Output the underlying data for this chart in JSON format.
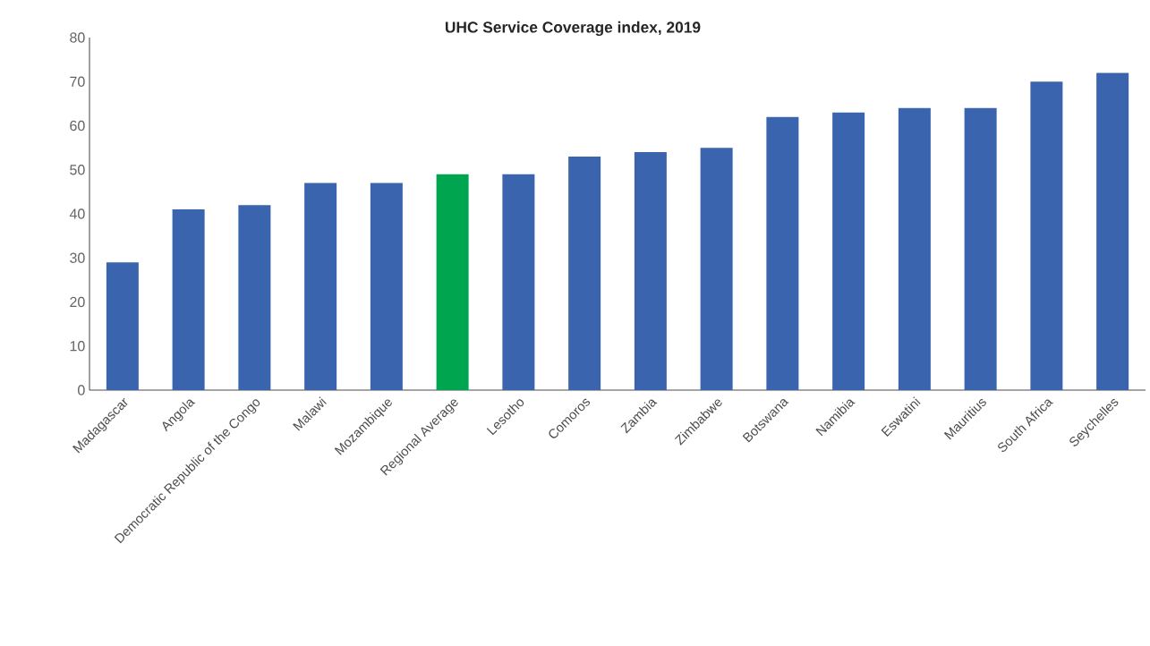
{
  "chart_data": {
    "type": "bar",
    "title": "UHC Service Coverage index, 2019",
    "categories": [
      "Madagascar",
      "Angola",
      "Democratic Republic of the Congo",
      "Malawi",
      "Mozambique",
      "Regional Average",
      "Lesotho",
      "Comoros",
      "Zambia",
      "Zimbabwe",
      "Botswana",
      "Namibia",
      "Eswatini",
      "Mauritius",
      "South Africa",
      "Seychelles"
    ],
    "values": [
      29,
      41,
      42,
      47,
      47,
      49,
      49,
      53,
      54,
      55,
      62,
      63,
      64,
      64,
      70,
      72
    ],
    "colors": [
      "#3a64ae",
      "#3a64ae",
      "#3a64ae",
      "#3a64ae",
      "#3a64ae",
      "#00a550",
      "#3a64ae",
      "#3a64ae",
      "#3a64ae",
      "#3a64ae",
      "#3a64ae",
      "#3a64ae",
      "#3a64ae",
      "#3a64ae",
      "#3a64ae",
      "#3a64ae"
    ],
    "ylim": [
      0,
      80
    ],
    "yticks": [
      0,
      10,
      20,
      30,
      40,
      50,
      60,
      70,
      80
    ],
    "grid": false
  }
}
